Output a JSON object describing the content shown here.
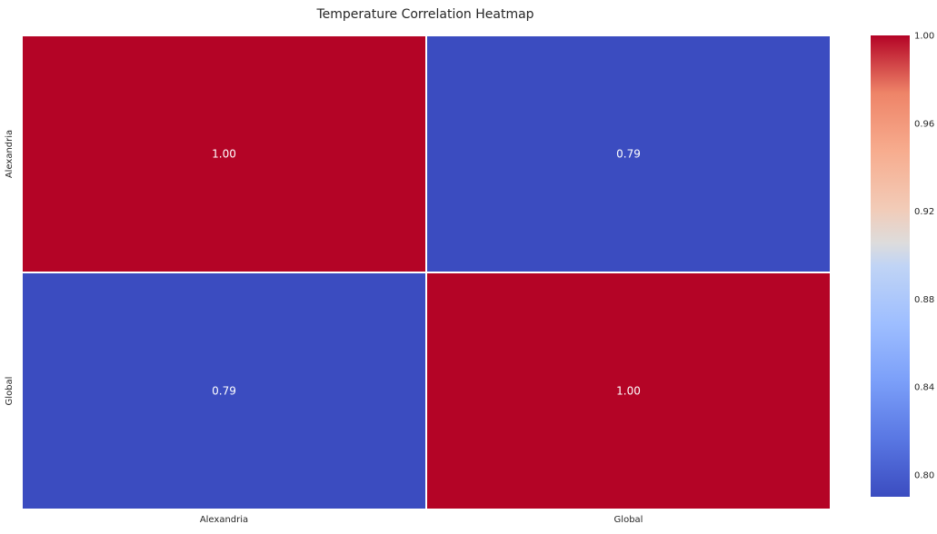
{
  "chart_data": {
    "type": "heatmap",
    "title": "Temperature Correlation Heatmap",
    "x_categories": [
      "Alexandria",
      "Global"
    ],
    "y_categories": [
      "Alexandria",
      "Global"
    ],
    "values": [
      [
        1.0,
        0.79
      ],
      [
        0.79,
        1.0
      ]
    ],
    "cell_labels": [
      [
        "1.00",
        "0.79"
      ],
      [
        "0.79",
        "1.00"
      ]
    ],
    "colormap": "coolwarm",
    "color_range": [
      0.79,
      1.0
    ],
    "colors": {
      "low": "#3b4cc0",
      "high": "#b40426",
      "cell_border": "#ffffff",
      "annotation_text": "#ffffff"
    },
    "colorbar": {
      "ticks": [
        0.8,
        0.84,
        0.88,
        0.92,
        0.96,
        1.0
      ],
      "tick_labels": [
        "0.80",
        "0.84",
        "0.88",
        "0.92",
        "0.96",
        "1.00"
      ]
    },
    "xlabel": "",
    "ylabel": ""
  }
}
